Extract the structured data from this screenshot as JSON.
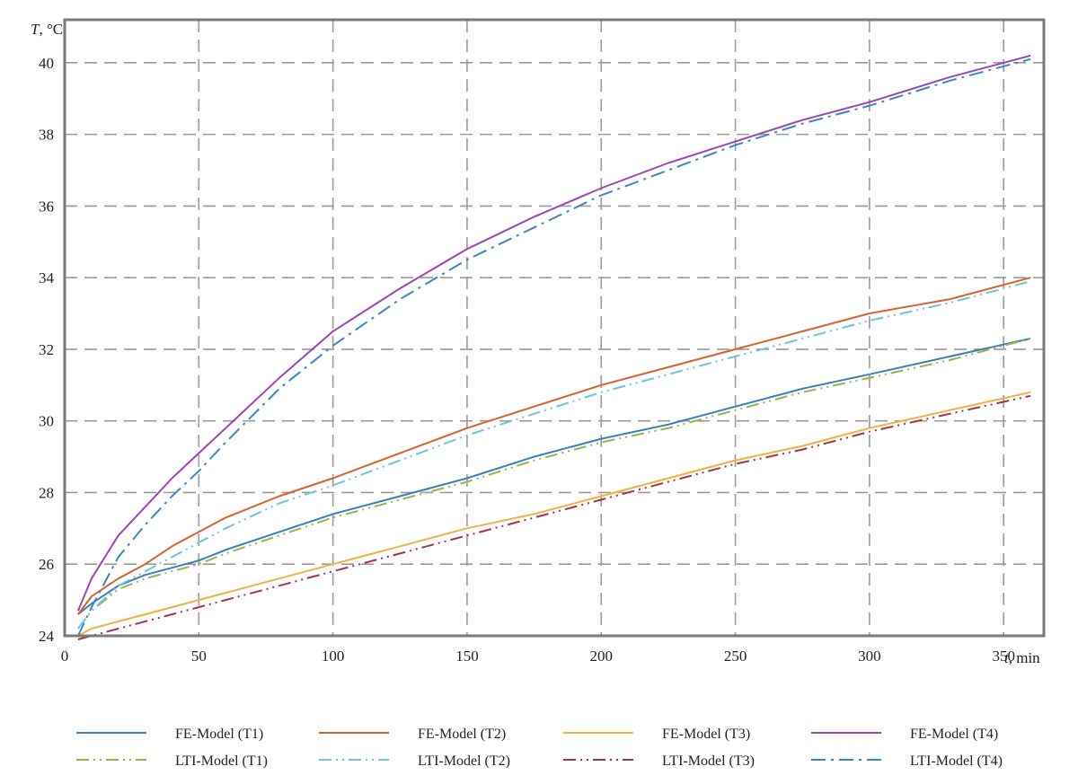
{
  "chart_data": {
    "type": "line",
    "title": "",
    "xlabel_var": "t",
    "xlabel_unit": ", min",
    "ylabel_var": "T",
    "ylabel_unit": ", °C",
    "xlim": [
      0,
      365
    ],
    "ylim": [
      24,
      41.2
    ],
    "xticks": [
      0,
      50,
      100,
      150,
      200,
      250,
      300,
      350
    ],
    "yticks": [
      24,
      26,
      28,
      30,
      32,
      34,
      36,
      38,
      40
    ],
    "grid": true,
    "legend_position": "bottom",
    "x": [
      5,
      10,
      20,
      30,
      40,
      50,
      60,
      80,
      100,
      125,
      150,
      175,
      200,
      225,
      250,
      275,
      300,
      330,
      360
    ],
    "series": [
      {
        "name": "FE-Model (T1)",
        "color": "#3a7fc0",
        "dash": "solid",
        "values": [
          24.6,
          24.9,
          25.4,
          25.7,
          25.9,
          26.1,
          26.4,
          26.9,
          27.4,
          27.9,
          28.4,
          29.0,
          29.5,
          29.9,
          30.4,
          30.9,
          31.3,
          31.8,
          32.3
        ]
      },
      {
        "name": "FE-Model (T2)",
        "color": "#d9622a",
        "dash": "solid",
        "values": [
          24.6,
          25.1,
          25.6,
          26.0,
          26.5,
          26.9,
          27.3,
          27.9,
          28.4,
          29.1,
          29.8,
          30.4,
          31.0,
          31.5,
          32.0,
          32.5,
          33.0,
          33.4,
          34.0
        ]
      },
      {
        "name": "FE-Model (T3)",
        "color": "#f0b33c",
        "dash": "solid",
        "values": [
          24.0,
          24.2,
          24.4,
          24.6,
          24.8,
          25.0,
          25.2,
          25.6,
          26.0,
          26.5,
          27.0,
          27.4,
          27.9,
          28.4,
          28.9,
          29.3,
          29.8,
          30.3,
          30.8
        ]
      },
      {
        "name": "FE-Model (T4)",
        "color": "#9b46b8",
        "dash": "solid",
        "values": [
          24.7,
          25.6,
          26.8,
          27.6,
          28.4,
          29.1,
          29.8,
          31.2,
          32.5,
          33.7,
          34.8,
          35.7,
          36.5,
          37.2,
          37.8,
          38.4,
          38.9,
          39.6,
          40.2
        ]
      },
      {
        "name": "LTI-Model (T1)",
        "color": "#9ab44a",
        "dash": "dashdotdot",
        "values": [
          24.2,
          24.7,
          25.3,
          25.6,
          25.8,
          26.0,
          26.3,
          26.8,
          27.3,
          27.8,
          28.3,
          28.9,
          29.4,
          29.8,
          30.3,
          30.8,
          31.2,
          31.7,
          32.3
        ]
      },
      {
        "name": "LTI-Model (T2)",
        "color": "#6fc4e0",
        "dash": "dashdotdot",
        "values": [
          24.2,
          24.7,
          25.4,
          25.8,
          26.2,
          26.6,
          27.0,
          27.7,
          28.2,
          28.9,
          29.6,
          30.2,
          30.8,
          31.3,
          31.8,
          32.3,
          32.8,
          33.3,
          33.9
        ]
      },
      {
        "name": "LTI-Model (T3)",
        "color": "#a8324a",
        "dash": "dashdotdot",
        "values": [
          23.9,
          24.0,
          24.2,
          24.4,
          24.6,
          24.8,
          25.0,
          25.4,
          25.8,
          26.3,
          26.8,
          27.3,
          27.8,
          28.3,
          28.8,
          29.2,
          29.7,
          30.2,
          30.7
        ]
      },
      {
        "name": "LTI-Model (T4)",
        "color": "#3b86c6",
        "dash": "dashdot",
        "values": [
          24.0,
          24.8,
          26.2,
          27.1,
          27.9,
          28.6,
          29.4,
          30.9,
          32.1,
          33.4,
          34.5,
          35.4,
          36.3,
          37.0,
          37.7,
          38.3,
          38.8,
          39.5,
          40.1
        ]
      }
    ]
  }
}
